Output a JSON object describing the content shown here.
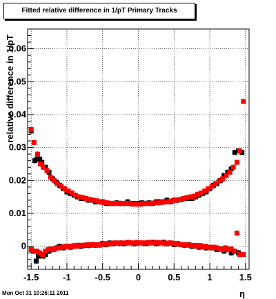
{
  "page": {
    "title": "Fitted relative difference in 1/pT  Primary Tracks",
    "footer_timestamp": "Mon Oct 31 10:26:11 2011"
  },
  "chart_data": {
    "type": "scatter",
    "title": "Fitted relative difference in 1/pT  Primary Tracks",
    "xlabel": "η",
    "ylabel": "relative difference in 1/pT",
    "xlim": [
      -1.55,
      1.55
    ],
    "ylim": [
      -0.007,
      0.066
    ],
    "x_ticks": [
      "-1.5",
      "-1",
      "-0.5",
      "0",
      "0.5",
      "1",
      "1.5"
    ],
    "y_ticks": [
      "0",
      "0.01",
      "0.02",
      "0.03",
      "0.04",
      "0.05",
      "0.06"
    ],
    "grid": true,
    "series": [
      {
        "color": "#000000",
        "upper_band": {
          "x": [
            -1.5,
            -1.45,
            -1.42,
            -1.38,
            -1.35,
            -1.3,
            -1.25,
            -1.2,
            -1.15,
            -1.1,
            -1.05,
            -1.0,
            -0.95,
            -0.9,
            -0.85,
            -0.8,
            -0.75,
            -0.7,
            -0.65,
            -0.6,
            -0.55,
            -0.5,
            -0.45,
            -0.4,
            -0.35,
            -0.3,
            -0.25,
            -0.2,
            -0.15,
            -0.1,
            -0.05,
            0.0,
            0.05,
            0.1,
            0.15,
            0.2,
            0.25,
            0.3,
            0.35,
            0.4,
            0.45,
            0.5,
            0.55,
            0.6,
            0.65,
            0.7,
            0.75,
            0.8,
            0.85,
            0.9,
            0.95,
            1.0,
            1.05,
            1.1,
            1.15,
            1.2,
            1.25,
            1.3,
            1.35,
            1.4,
            1.45
          ],
          "y": [
            0.035,
            0.026,
            0.0265,
            0.0265,
            0.0255,
            0.024,
            0.0225,
            0.0205,
            0.0195,
            0.0185,
            0.0175,
            0.0165,
            0.016,
            0.0155,
            0.015,
            0.0145,
            0.0145,
            0.014,
            0.014,
            0.0135,
            0.0135,
            0.0135,
            0.013,
            0.013,
            0.013,
            0.0132,
            0.013,
            0.013,
            0.0135,
            0.013,
            0.013,
            0.013,
            0.0132,
            0.013,
            0.0132,
            0.013,
            0.0135,
            0.0135,
            0.0135,
            0.014,
            0.0135,
            0.014,
            0.014,
            0.0142,
            0.0145,
            0.0145,
            0.0145,
            0.015,
            0.0155,
            0.016,
            0.0165,
            0.0175,
            0.0185,
            0.019,
            0.02,
            0.0215,
            0.0225,
            0.0235,
            0.0285,
            0.029,
            0.0285
          ]
        },
        "lower_band": {
          "x": [
            -1.5,
            -1.47,
            -1.43,
            -1.4,
            -1.37,
            -1.33,
            -1.3,
            -1.25,
            -1.2,
            -1.15,
            -1.1,
            -1.05,
            -1.0,
            -0.95,
            -0.9,
            -0.85,
            -0.8,
            -0.75,
            -0.7,
            -0.65,
            -0.6,
            -0.55,
            -0.5,
            -0.45,
            -0.4,
            -0.35,
            -0.3,
            -0.25,
            -0.2,
            -0.15,
            -0.1,
            -0.05,
            0.0,
            0.05,
            0.1,
            0.15,
            0.2,
            0.25,
            0.3,
            0.35,
            0.4,
            0.45,
            0.5,
            0.55,
            0.6,
            0.65,
            0.7,
            0.75,
            0.8,
            0.85,
            0.9,
            0.95,
            1.0,
            1.05,
            1.1,
            1.15,
            1.2,
            1.25,
            1.3,
            1.35,
            1.4,
            1.45
          ],
          "y": [
            -0.001,
            -0.0015,
            -0.0045,
            -0.003,
            -0.0025,
            -0.003,
            -0.0025,
            -0.0015,
            -0.001,
            -0.0005,
            0.0,
            -0.0005,
            0.0,
            -0.0003,
            0.0,
            0.0002,
            0.0,
            0.0003,
            0.0002,
            0.0005,
            0.0003,
            0.0005,
            0.0008,
            0.0005,
            0.001,
            0.0008,
            0.001,
            0.001,
            0.0008,
            0.001,
            0.001,
            0.0008,
            0.001,
            0.001,
            0.0008,
            0.001,
            0.0012,
            0.0008,
            0.001,
            0.0012,
            0.0008,
            0.001,
            0.0005,
            0.0008,
            0.0005,
            0.0003,
            0.0005,
            0.0,
            0.0002,
            -0.0003,
            0.0,
            -0.0005,
            -0.0003,
            -0.0005,
            -0.001,
            -0.0008,
            -0.0015,
            -0.001,
            -0.002,
            -0.0015,
            -0.002,
            -0.0025
          ]
        }
      },
      {
        "color": "#ff0000",
        "upper_band": {
          "x": [
            -1.5,
            -1.46,
            -1.41,
            -1.37,
            -1.33,
            -1.28,
            -1.23,
            -1.18,
            -1.13,
            -1.08,
            -1.03,
            -0.98,
            -0.93,
            -0.88,
            -0.83,
            -0.78,
            -0.73,
            -0.68,
            -0.63,
            -0.58,
            -0.53,
            -0.48,
            -0.43,
            -0.38,
            -0.33,
            -0.28,
            -0.23,
            -0.18,
            -0.13,
            -0.08,
            -0.03,
            0.03,
            0.08,
            0.13,
            0.18,
            0.23,
            0.28,
            0.33,
            0.38,
            0.43,
            0.48,
            0.53,
            0.58,
            0.63,
            0.68,
            0.73,
            0.78,
            0.83,
            0.88,
            0.93,
            0.98,
            1.03,
            1.08,
            1.13,
            1.18,
            1.23,
            1.28,
            1.33,
            1.38,
            1.42,
            1.47
          ],
          "y": [
            0.0355,
            0.0315,
            0.028,
            0.025,
            0.024,
            0.023,
            0.021,
            0.02,
            0.019,
            0.0182,
            0.0175,
            0.0168,
            0.0162,
            0.0155,
            0.015,
            0.0148,
            0.0145,
            0.0142,
            0.014,
            0.0138,
            0.0135,
            0.0133,
            0.0132,
            0.013,
            0.013,
            0.013,
            0.013,
            0.013,
            0.013,
            0.0128,
            0.0128,
            0.0128,
            0.013,
            0.013,
            0.013,
            0.0132,
            0.0132,
            0.0133,
            0.0135,
            0.0135,
            0.0138,
            0.014,
            0.0142,
            0.0145,
            0.0148,
            0.015,
            0.0152,
            0.0158,
            0.0162,
            0.0168,
            0.0175,
            0.0182,
            0.019,
            0.0198,
            0.0205,
            0.0215,
            0.0225,
            0.024,
            0.0255,
            0.029,
            0.044
          ]
        },
        "lower_band": {
          "x": [
            -1.5,
            -1.46,
            -1.42,
            -1.38,
            -1.34,
            -1.3,
            -1.26,
            -1.22,
            -1.18,
            -1.14,
            -1.1,
            -1.06,
            -1.02,
            -0.98,
            -0.94,
            -0.9,
            -0.86,
            -0.82,
            -0.78,
            -0.74,
            -0.7,
            -0.66,
            -0.62,
            -0.58,
            -0.54,
            -0.5,
            -0.46,
            -0.42,
            -0.38,
            -0.34,
            -0.3,
            -0.26,
            -0.22,
            -0.18,
            -0.14,
            -0.1,
            -0.06,
            -0.02,
            0.02,
            0.06,
            0.1,
            0.14,
            0.18,
            0.22,
            0.26,
            0.3,
            0.34,
            0.38,
            0.42,
            0.46,
            0.5,
            0.54,
            0.58,
            0.62,
            0.66,
            0.7,
            0.74,
            0.78,
            0.82,
            0.86,
            0.9,
            0.94,
            0.98,
            1.02,
            1.06,
            1.1,
            1.14,
            1.18,
            1.22,
            1.26,
            1.3,
            1.34,
            1.38,
            1.42,
            1.47
          ],
          "y": [
            -0.001,
            -0.0015,
            -0.0015,
            -0.002,
            -0.0025,
            -0.0015,
            -0.001,
            -0.0008,
            -0.001,
            -0.0005,
            -0.0005,
            -0.0003,
            0.0,
            -0.0002,
            0.0,
            0.0002,
            0.0,
            0.0003,
            0.0002,
            0.0003,
            0.0005,
            0.0003,
            0.0005,
            0.0005,
            0.0003,
            0.0006,
            0.0008,
            0.0007,
            0.0008,
            0.001,
            0.001,
            0.0008,
            0.001,
            0.001,
            0.0012,
            0.001,
            0.001,
            0.0012,
            0.001,
            0.001,
            0.001,
            0.0012,
            0.001,
            0.001,
            0.0012,
            0.001,
            0.001,
            0.0008,
            0.001,
            0.001,
            0.0008,
            0.0008,
            0.0006,
            0.0005,
            0.0005,
            0.0003,
            0.0003,
            0.0002,
            0.0,
            0.0002,
            -0.0002,
            0.0,
            -0.0003,
            -0.0005,
            -0.0003,
            -0.0005,
            -0.0008,
            -0.001,
            -0.0005,
            -0.001,
            -0.0008,
            -0.0015,
            0.004,
            -0.0025,
            -0.0025
          ]
        }
      }
    ]
  }
}
